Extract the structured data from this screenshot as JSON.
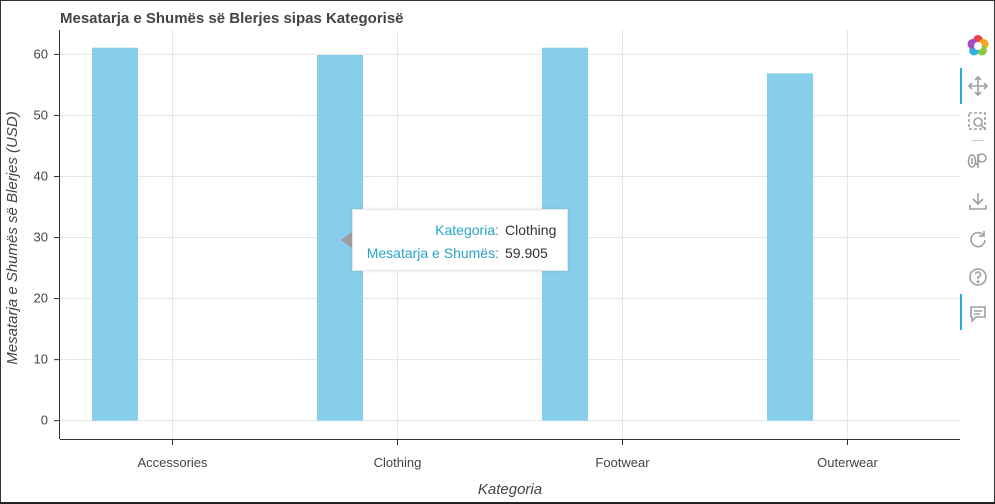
{
  "chart_data": {
    "type": "bar",
    "title": "Mesatarja e Shumës së Blerjes sipas Kategorisë",
    "xlabel": "Kategoria",
    "ylabel": "Mesatarja e Shumës së Blerjes (USD)",
    "categories": [
      "Accessories",
      "Clothing",
      "Footwear",
      "Outerwear"
    ],
    "values": [
      61.1,
      59.905,
      61.1,
      56.9
    ],
    "ylim": [
      -3,
      64
    ],
    "yticks": [
      0,
      10,
      20,
      30,
      40,
      50,
      60
    ],
    "bar_color": "#87ceeb",
    "grid": true
  },
  "tooltip": {
    "category_key": "Kategoria:",
    "category_value": "Clothing",
    "value_key": "Mesatarja e Shumës:",
    "value_value": "59.905"
  },
  "toolbar": {
    "items": [
      {
        "name": "bokeh-logo-icon"
      },
      {
        "name": "pan-icon"
      },
      {
        "name": "box-zoom-icon"
      },
      {
        "name": "reset-zoom-icon"
      },
      {
        "name": "save-icon"
      },
      {
        "name": "reset-icon"
      },
      {
        "name": "help-icon"
      },
      {
        "name": "hover-icon"
      }
    ]
  }
}
